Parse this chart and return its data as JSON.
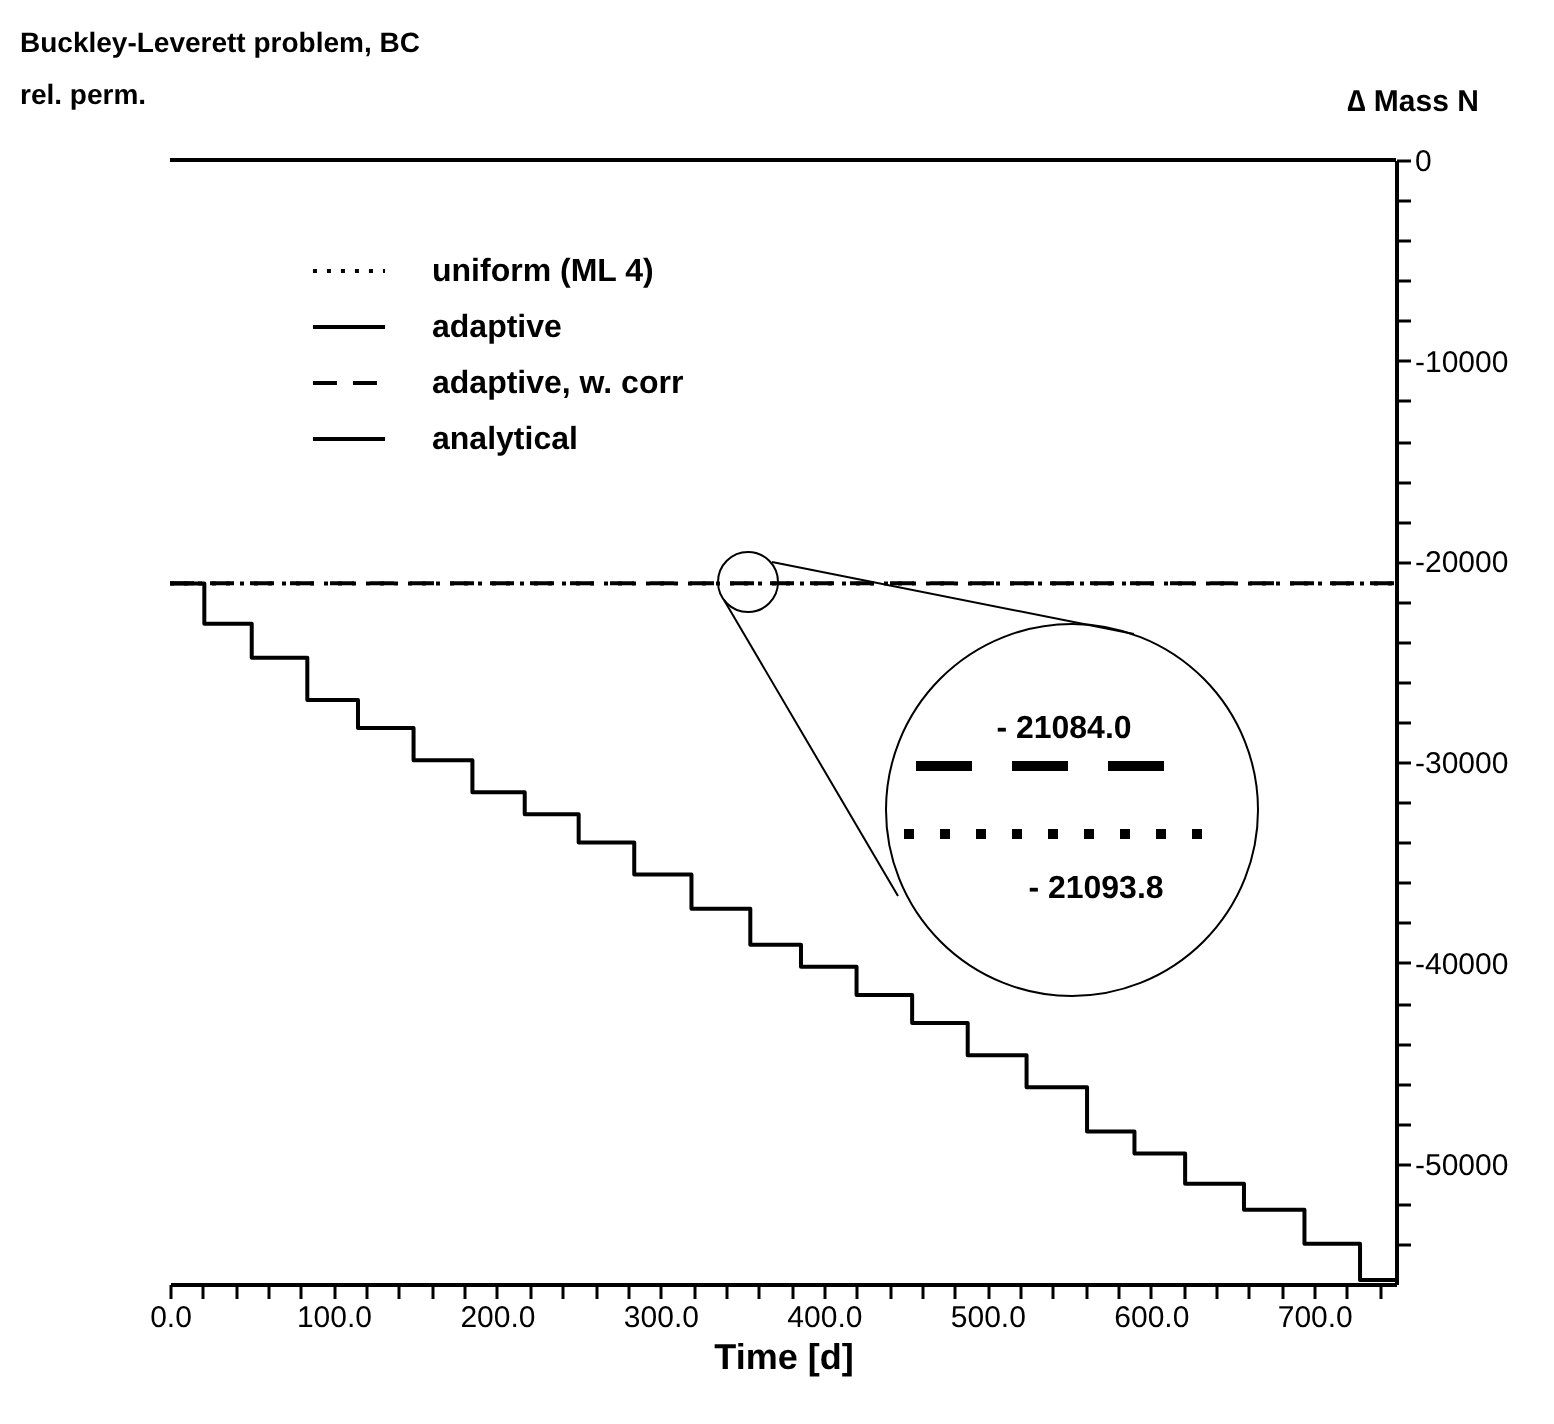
{
  "chart_data": {
    "type": "line",
    "title": "Buckley-Leverett problem, BC rel. perm.",
    "xlabel": "Time [d]",
    "ylabel": "∆ Mass N",
    "xlim": [
      0,
      750
    ],
    "ylim": [
      -56000,
      0
    ],
    "xticks": [
      {
        "value": 0,
        "label": "0.0"
      },
      {
        "value": 20,
        "label": null
      },
      {
        "value": 40,
        "label": null
      },
      {
        "value": 60,
        "label": null
      },
      {
        "value": 80,
        "label": null
      },
      {
        "value": 100,
        "label": "100.0"
      },
      {
        "value": 120,
        "label": null
      },
      {
        "value": 140,
        "label": null
      },
      {
        "value": 160,
        "label": null
      },
      {
        "value": 180,
        "label": null
      },
      {
        "value": 200,
        "label": "200.0"
      },
      {
        "value": 220,
        "label": null
      },
      {
        "value": 240,
        "label": null
      },
      {
        "value": 260,
        "label": null
      },
      {
        "value": 280,
        "label": null
      },
      {
        "value": 300,
        "label": "300.0"
      },
      {
        "value": 320,
        "label": null
      },
      {
        "value": 340,
        "label": null
      },
      {
        "value": 360,
        "label": null
      },
      {
        "value": 380,
        "label": null
      },
      {
        "value": 400,
        "label": "400.0"
      },
      {
        "value": 420,
        "label": null
      },
      {
        "value": 440,
        "label": null
      },
      {
        "value": 460,
        "label": null
      },
      {
        "value": 480,
        "label": null
      },
      {
        "value": 500,
        "label": "500.0"
      },
      {
        "value": 520,
        "label": null
      },
      {
        "value": 540,
        "label": null
      },
      {
        "value": 560,
        "label": null
      },
      {
        "value": 580,
        "label": null
      },
      {
        "value": 600,
        "label": "600.0"
      },
      {
        "value": 620,
        "label": null
      },
      {
        "value": 640,
        "label": null
      },
      {
        "value": 660,
        "label": null
      },
      {
        "value": 680,
        "label": null
      },
      {
        "value": 700,
        "label": "700.0"
      },
      {
        "value": 720,
        "label": null
      },
      {
        "value": 740,
        "label": null
      }
    ],
    "yticks": [
      0,
      {
        "value": -2000,
        "label": null
      },
      {
        "value": -4000,
        "label": null
      },
      {
        "value": -6000,
        "label": null
      },
      {
        "value": -8000,
        "label": null
      },
      -10000,
      {
        "value": -12000,
        "label": null
      },
      {
        "value": -14000,
        "label": null
      },
      {
        "value": -16000,
        "label": null
      },
      {
        "value": -18000,
        "label": null
      },
      -20000,
      {
        "value": -22000,
        "label": null
      },
      {
        "value": -24000,
        "label": null
      },
      {
        "value": -26000,
        "label": null
      },
      {
        "value": -28000,
        "label": null
      },
      -30000,
      {
        "value": -32000,
        "label": null
      },
      {
        "value": -34000,
        "label": null
      },
      {
        "value": -36000,
        "label": null
      },
      {
        "value": -38000,
        "label": null
      },
      -40000,
      {
        "value": -42000,
        "label": null
      },
      {
        "value": -44000,
        "label": null
      },
      {
        "value": -46000,
        "label": null
      },
      {
        "value": -48000,
        "label": null
      },
      -50000,
      {
        "value": -52000,
        "label": null
      },
      {
        "value": -54000,
        "label": null
      }
    ],
    "legend": "top left",
    "grid": false,
    "series": [
      {
        "name": "uniform (ML 4)",
        "color": "#000000",
        "line_style": "dotted",
        "x": [
          0,
          750
        ],
        "values": [
          -21093.8,
          -21093.8
        ]
      },
      {
        "name": "adaptive",
        "type": "step",
        "color": "#000000",
        "line_style": "solid",
        "x": [
          0,
          21,
          50,
          84,
          115,
          149,
          185,
          217,
          250,
          284,
          319,
          355,
          386,
          420,
          454,
          488,
          524,
          561,
          590,
          621,
          657,
          694,
          728,
          750
        ],
        "values": [
          -21100,
          -23100,
          -24800,
          -26900,
          -28300,
          -29900,
          -31500,
          -32600,
          -34000,
          -35600,
          -37300,
          -39100,
          -40200,
          -41600,
          -43000,
          -44600,
          -46200,
          -48400,
          -49500,
          -51000,
          -52300,
          -54000,
          -55800,
          -55800
        ]
      },
      {
        "name": "adaptive, w. corr",
        "color": "#000000",
        "line_style": "dashed",
        "x": [
          0,
          750
        ],
        "values": [
          -21084,
          -21084
        ]
      },
      {
        "name": "analytical",
        "color": "#000000",
        "line_style": "solid",
        "x": [
          0,
          750
        ],
        "values": [
          0,
          0
        ]
      }
    ],
    "annotations": [
      "- 21084.0",
      "- 21093.8"
    ]
  }
}
